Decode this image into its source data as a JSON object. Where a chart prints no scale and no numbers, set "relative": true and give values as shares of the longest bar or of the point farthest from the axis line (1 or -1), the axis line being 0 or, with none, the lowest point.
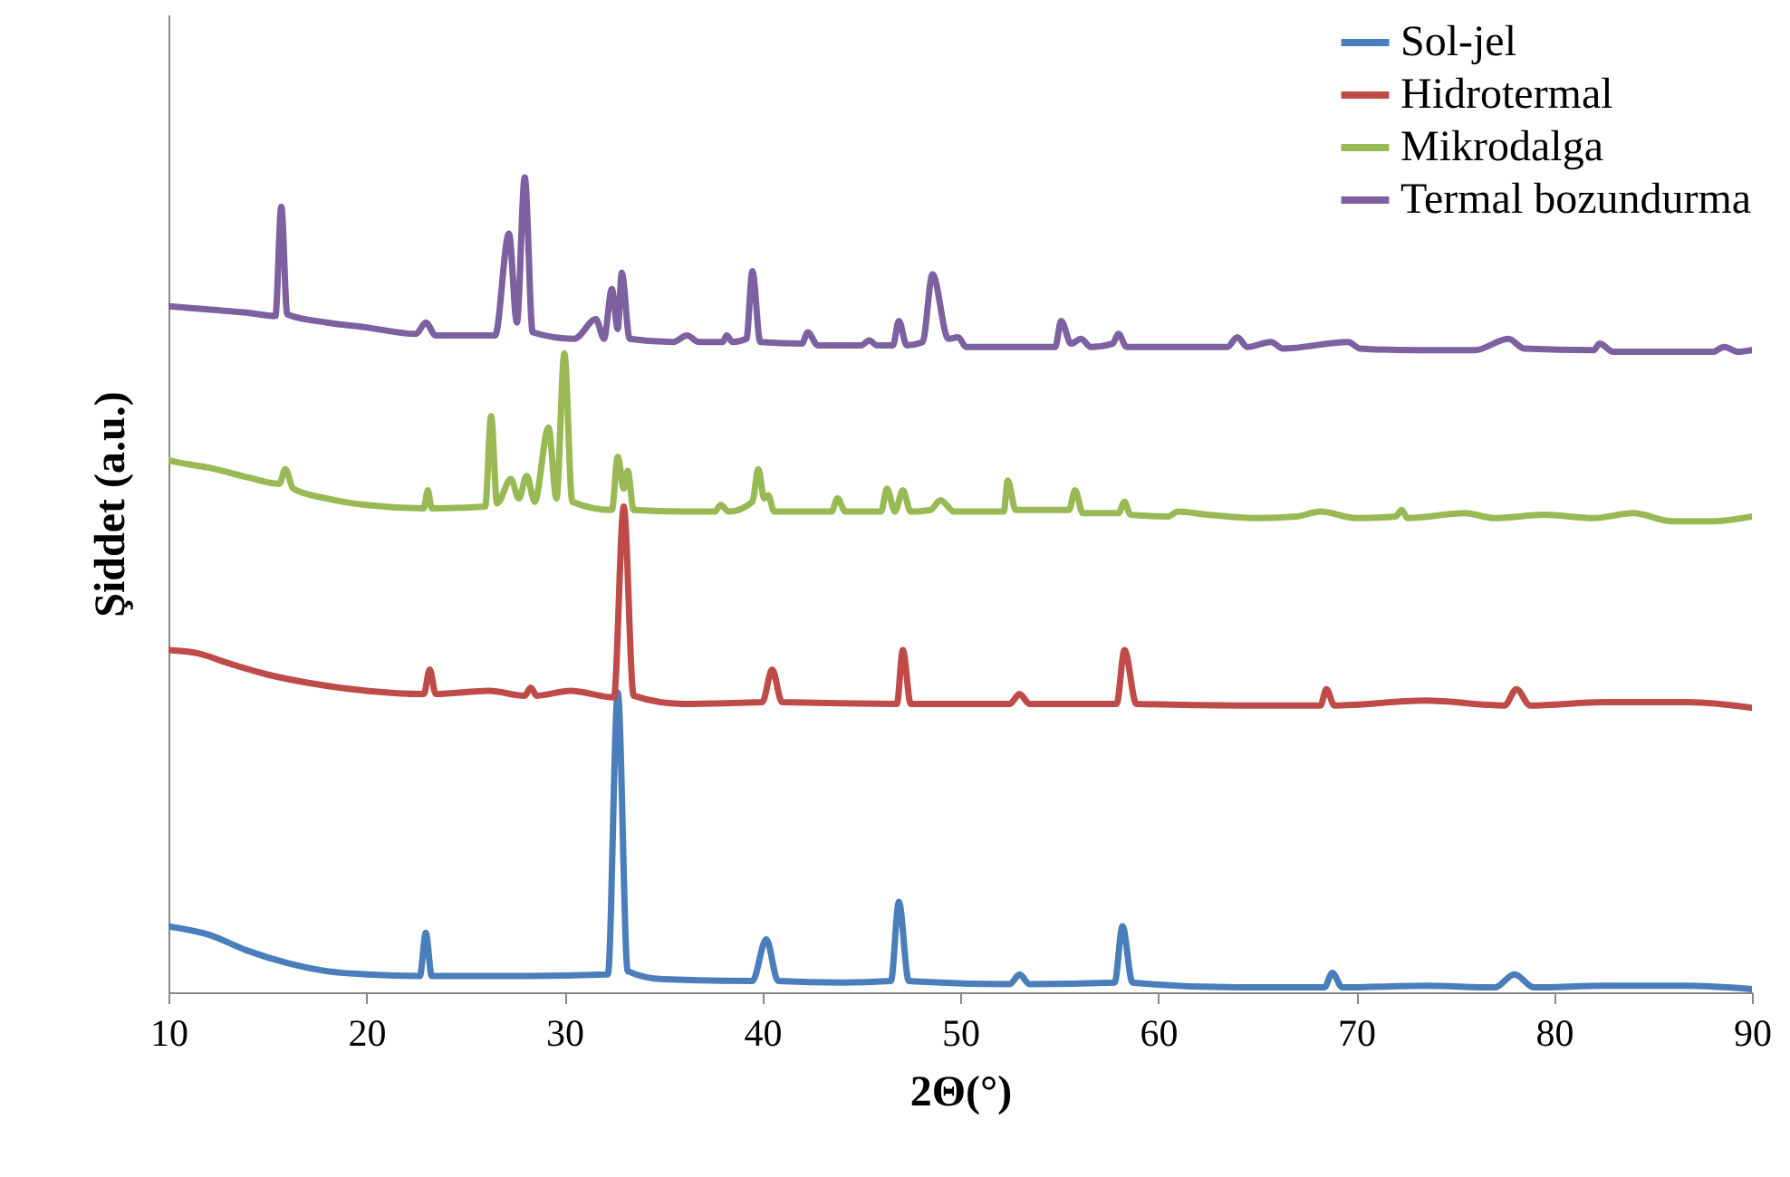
{
  "chart_data": {
    "type": "line",
    "xlabel": "2Θ(°)",
    "ylabel": "Şiddet (a.u.)",
    "xlim": [
      10,
      90
    ],
    "xticks": [
      10,
      20,
      30,
      40,
      50,
      60,
      70,
      80,
      90
    ],
    "relative": true,
    "legend": "top right",
    "line_style": "solid",
    "series": [
      {
        "name": "Sol-jel",
        "color": "#4a7ebb",
        "x": [
          10,
          12,
          14,
          16,
          18,
          20,
          22.7,
          23.0,
          23.3,
          28,
          32.2,
          32.7,
          33.2,
          35,
          39.5,
          40.2,
          40.8,
          44,
          46.5,
          46.9,
          47.4,
          52.5,
          53.0,
          53.5,
          57.8,
          58.2,
          58.7,
          64,
          68.4,
          68.8,
          69.3,
          73.5,
          77,
          78,
          79,
          82.5,
          86.7,
          90
        ],
        "values": [
          0.081,
          0.071,
          0.051,
          0.036,
          0.026,
          0.022,
          0.02,
          0.073,
          0.02,
          0.02,
          0.022,
          0.368,
          0.026,
          0.016,
          0.014,
          0.065,
          0.014,
          0.012,
          0.014,
          0.111,
          0.014,
          0.01,
          0.022,
          0.01,
          0.012,
          0.081,
          0.012,
          0.006,
          0.006,
          0.024,
          0.006,
          0.008,
          0.006,
          0.022,
          0.006,
          0.008,
          0.008,
          0.004
        ]
      },
      {
        "name": "Hidrotermal",
        "color": "#be4b48",
        "x": [
          10,
          11.5,
          13,
          15,
          17,
          20,
          22.9,
          23.2,
          23.5,
          26.2,
          28.0,
          28.3,
          28.6,
          30.3,
          32.5,
          33.0,
          33.5,
          36,
          40,
          40.5,
          41,
          46.8,
          47.1,
          47.5,
          52.5,
          53.0,
          53.5,
          57.9,
          58.3,
          58.9,
          64,
          68.2,
          68.5,
          68.9,
          73.5,
          77.5,
          78.1,
          78.8,
          82.5,
          86.8,
          90
        ],
        "values": [
          0.42,
          0.416,
          0.404,
          0.39,
          0.38,
          0.37,
          0.366,
          0.396,
          0.366,
          0.37,
          0.364,
          0.374,
          0.364,
          0.37,
          0.362,
          0.596,
          0.364,
          0.354,
          0.356,
          0.396,
          0.356,
          0.354,
          0.42,
          0.354,
          0.354,
          0.366,
          0.354,
          0.354,
          0.42,
          0.354,
          0.352,
          0.352,
          0.372,
          0.352,
          0.358,
          0.352,
          0.372,
          0.352,
          0.356,
          0.356,
          0.349
        ]
      },
      {
        "name": "Mikrodalga",
        "color": "#98b954",
        "x": [
          10,
          11,
          12,
          14,
          15.6,
          15.9,
          16.3,
          18,
          20,
          22.9,
          23.1,
          23.3,
          26.0,
          26.3,
          26.6,
          27.3,
          27.7,
          28.1,
          28.5,
          29.2,
          29.6,
          30.0,
          30.4,
          32.4,
          32.7,
          33.0,
          33.2,
          33.5,
          36,
          37.6,
          37.9,
          38.3,
          39.5,
          39.8,
          40.1,
          40.3,
          40.6,
          43.5,
          43.8,
          44.2,
          46,
          46.3,
          46.7,
          47.1,
          47.5,
          48.5,
          49,
          49.7,
          52.2,
          52.4,
          52.8,
          55.5,
          55.8,
          56.2,
          58.0,
          58.3,
          58.6,
          60.5,
          61,
          62.5,
          65,
          67,
          68.2,
          70,
          72,
          72.3,
          72.6,
          75.5,
          77,
          79.5,
          82,
          84,
          86,
          88,
          90
        ],
        "values": [
          0.653,
          0.648,
          0.644,
          0.632,
          0.624,
          0.642,
          0.618,
          0.606,
          0.598,
          0.594,
          0.616,
          0.594,
          0.596,
          0.707,
          0.6,
          0.63,
          0.606,
          0.634,
          0.602,
          0.693,
          0.606,
          0.784,
          0.602,
          0.592,
          0.657,
          0.618,
          0.64,
          0.592,
          0.59,
          0.59,
          0.598,
          0.59,
          0.602,
          0.642,
          0.606,
          0.61,
          0.59,
          0.59,
          0.606,
          0.59,
          0.59,
          0.618,
          0.59,
          0.616,
          0.59,
          0.592,
          0.604,
          0.59,
          0.59,
          0.628,
          0.592,
          0.592,
          0.616,
          0.588,
          0.588,
          0.602,
          0.586,
          0.584,
          0.59,
          0.586,
          0.582,
          0.584,
          0.59,
          0.582,
          0.584,
          0.592,
          0.582,
          0.588,
          0.582,
          0.586,
          0.582,
          0.588,
          0.578,
          0.578,
          0.584
        ]
      },
      {
        "name": "Termal bozundurma",
        "color": "#7d60a0",
        "x": [
          10,
          12,
          14,
          15.4,
          15.7,
          16.0,
          18,
          20,
          22.5,
          23.0,
          23.5,
          26.5,
          27.2,
          27.6,
          28.0,
          28.4,
          30.5,
          31.6,
          32.0,
          32.4,
          32.7,
          32.9,
          33.3,
          35.5,
          36.2,
          36.8,
          38,
          38.2,
          38.5,
          39.2,
          39.5,
          39.9,
          42,
          42.3,
          42.8,
          45,
          45.4,
          45.8,
          46.6,
          46.9,
          47.3,
          48.1,
          48.6,
          49.4,
          49.9,
          50.3,
          54.8,
          55.1,
          55.6,
          56.1,
          56.6,
          57.7,
          58.0,
          58.4,
          63.5,
          64.0,
          64.5,
          65.7,
          66.3,
          69.6,
          70.2,
          73,
          76,
          77.7,
          78.5,
          82,
          82.3,
          83,
          88,
          88.6,
          89.3,
          90
        ],
        "values": [
          0.842,
          0.838,
          0.834,
          0.83,
          0.964,
          0.832,
          0.822,
          0.816,
          0.808,
          0.822,
          0.806,
          0.806,
          0.931,
          0.822,
          1,
          0.81,
          0.802,
          0.826,
          0.802,
          0.863,
          0.814,
          0.883,
          0.802,
          0.798,
          0.806,
          0.798,
          0.798,
          0.806,
          0.798,
          0.802,
          0.885,
          0.798,
          0.796,
          0.81,
          0.794,
          0.794,
          0.8,
          0.794,
          0.794,
          0.824,
          0.794,
          0.798,
          0.881,
          0.802,
          0.804,
          0.792,
          0.792,
          0.824,
          0.796,
          0.802,
          0.792,
          0.796,
          0.808,
          0.792,
          0.792,
          0.804,
          0.792,
          0.798,
          0.79,
          0.798,
          0.79,
          0.788,
          0.788,
          0.802,
          0.79,
          0.788,
          0.796,
          0.786,
          0.786,
          0.792,
          0.786,
          0.788
        ]
      }
    ]
  }
}
